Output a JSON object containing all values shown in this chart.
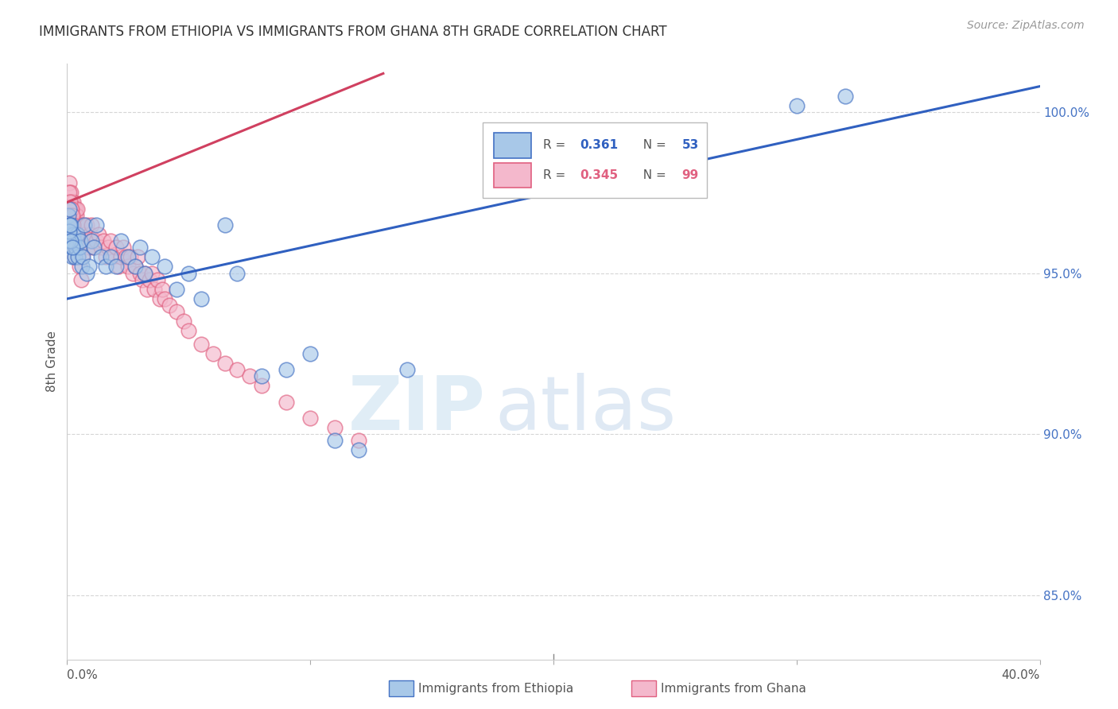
{
  "title": "IMMIGRANTS FROM ETHIOPIA VS IMMIGRANTS FROM GHANA 8TH GRADE CORRELATION CHART",
  "source": "Source: ZipAtlas.com",
  "ylabel": "8th Grade",
  "xlim": [
    0.0,
    40.0
  ],
  "ylim": [
    83.0,
    101.5
  ],
  "ethiopia_color": "#a8c8e8",
  "ghana_color": "#f4b8cc",
  "ethiopia_edge_color": "#4472c4",
  "ghana_edge_color": "#e06080",
  "ethiopia_line_color": "#3060c0",
  "ghana_line_color": "#d04060",
  "right_axis_color": "#4472c4",
  "grid_color": "#cccccc",
  "background_color": "#ffffff",
  "title_color": "#333333",
  "axis_label_color": "#555555",
  "ethiopia_scatter_x": [
    0.05,
    0.08,
    0.1,
    0.12,
    0.15,
    0.18,
    0.2,
    0.22,
    0.25,
    0.28,
    0.3,
    0.35,
    0.4,
    0.45,
    0.5,
    0.55,
    0.6,
    0.65,
    0.7,
    0.8,
    0.9,
    1.0,
    1.1,
    1.2,
    1.4,
    1.6,
    1.8,
    2.0,
    2.2,
    2.5,
    2.8,
    3.0,
    3.2,
    3.5,
    4.0,
    4.5,
    5.0,
    5.5,
    6.5,
    7.0,
    8.0,
    9.0,
    10.0,
    11.0,
    12.0,
    14.0,
    30.0,
    32.0,
    0.06,
    0.09,
    0.13,
    0.16,
    0.23
  ],
  "ethiopia_scatter_y": [
    96.8,
    96.5,
    97.0,
    96.2,
    96.5,
    95.8,
    96.0,
    95.5,
    96.2,
    96.0,
    95.5,
    95.8,
    96.2,
    95.5,
    95.8,
    96.0,
    95.2,
    95.5,
    96.5,
    95.0,
    95.2,
    96.0,
    95.8,
    96.5,
    95.5,
    95.2,
    95.5,
    95.2,
    96.0,
    95.5,
    95.2,
    95.8,
    95.0,
    95.5,
    95.2,
    94.5,
    95.0,
    94.2,
    96.5,
    95.0,
    91.8,
    92.0,
    92.5,
    89.8,
    89.5,
    92.0,
    100.2,
    100.5,
    96.0,
    96.3,
    96.5,
    96.0,
    95.8
  ],
  "ghana_scatter_x": [
    0.04,
    0.06,
    0.08,
    0.1,
    0.12,
    0.14,
    0.16,
    0.18,
    0.2,
    0.22,
    0.24,
    0.26,
    0.28,
    0.3,
    0.32,
    0.35,
    0.38,
    0.4,
    0.42,
    0.45,
    0.48,
    0.5,
    0.55,
    0.6,
    0.65,
    0.7,
    0.75,
    0.8,
    0.85,
    0.9,
    0.95,
    1.0,
    1.05,
    1.1,
    1.2,
    1.3,
    1.4,
    1.5,
    1.6,
    1.7,
    1.8,
    1.9,
    2.0,
    2.1,
    2.2,
    2.3,
    2.4,
    2.5,
    2.6,
    2.7,
    2.8,
    2.9,
    3.0,
    3.1,
    3.2,
    3.3,
    3.4,
    3.5,
    3.6,
    3.7,
    3.8,
    3.9,
    4.0,
    4.2,
    4.5,
    4.8,
    5.0,
    5.5,
    6.0,
    6.5,
    7.0,
    7.5,
    8.0,
    9.0,
    10.0,
    11.0,
    12.0,
    0.07,
    0.09,
    0.11,
    0.13,
    0.15,
    0.17,
    0.19,
    0.21,
    0.23,
    0.25,
    0.27,
    0.29,
    0.31,
    0.33,
    0.36,
    0.39,
    0.41,
    0.44,
    0.47,
    0.52,
    0.58,
    0.62
  ],
  "ghana_scatter_y": [
    97.5,
    97.2,
    97.8,
    97.0,
    97.2,
    97.5,
    97.0,
    97.2,
    96.8,
    97.0,
    97.2,
    96.5,
    97.0,
    96.8,
    96.5,
    97.0,
    96.8,
    96.5,
    97.0,
    96.5,
    96.2,
    96.5,
    96.2,
    96.5,
    96.0,
    96.2,
    96.0,
    96.5,
    96.0,
    95.8,
    96.2,
    96.5,
    96.0,
    95.8,
    96.0,
    96.2,
    95.8,
    96.0,
    95.5,
    95.8,
    96.0,
    95.5,
    95.8,
    95.2,
    95.5,
    95.8,
    95.5,
    95.2,
    95.5,
    95.0,
    95.2,
    95.5,
    95.0,
    94.8,
    95.0,
    94.5,
    94.8,
    95.0,
    94.5,
    94.8,
    94.2,
    94.5,
    94.2,
    94.0,
    93.8,
    93.5,
    93.2,
    92.8,
    92.5,
    92.2,
    92.0,
    91.8,
    91.5,
    91.0,
    90.5,
    90.2,
    89.8,
    97.0,
    97.5,
    96.8,
    97.2,
    97.0,
    96.8,
    97.0,
    96.5,
    96.8,
    96.5,
    96.2,
    96.0,
    95.8,
    95.5,
    96.0,
    95.8,
    96.2,
    95.5,
    95.8,
    95.2,
    94.8,
    95.5
  ],
  "eth_line_x0": 0.0,
  "eth_line_x1": 40.0,
  "eth_line_y0": 94.2,
  "eth_line_y1": 100.8,
  "gha_line_x0": 0.0,
  "gha_line_x1": 13.0,
  "gha_line_y0": 97.2,
  "gha_line_y1": 101.2
}
